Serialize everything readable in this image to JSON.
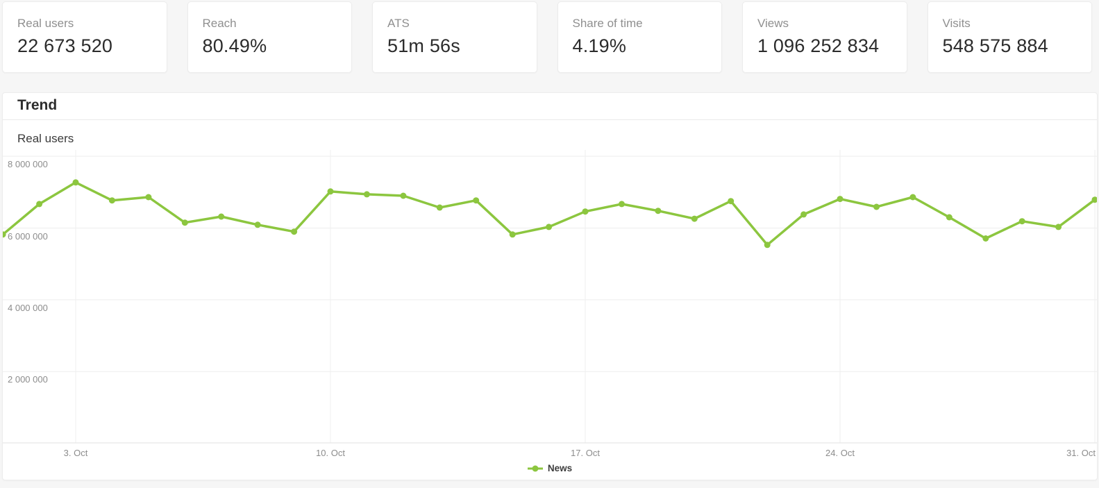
{
  "kpi_cards": [
    {
      "label": "Real users",
      "value": "22 673 520"
    },
    {
      "label": "Reach",
      "value": "80.49%"
    },
    {
      "label": "ATS",
      "value": "51m 56s"
    },
    {
      "label": "Share of time",
      "value": "4.19%"
    },
    {
      "label": "Views",
      "value": "1 096 252 834"
    },
    {
      "label": "Visits",
      "value": "548 575 884"
    }
  ],
  "trend_panel": {
    "title": "Trend",
    "subtitle": "Real users"
  },
  "colors": {
    "series_green": "#8cc63f",
    "grid_line": "#ededed",
    "axis_line": "#e2e2e2",
    "tick_text": "#8c8c8c"
  },
  "chart_data": {
    "type": "line",
    "title": "Trend",
    "ylabel": "Real users",
    "xlabel": "",
    "grid": true,
    "legend_position": "bottom",
    "ylim": [
      0,
      8160000
    ],
    "x_days": [
      1,
      2,
      3,
      4,
      5,
      6,
      7,
      8,
      9,
      10,
      11,
      12,
      13,
      14,
      15,
      16,
      17,
      18,
      19,
      20,
      21,
      22,
      23,
      24,
      25,
      26,
      27,
      28,
      29,
      30,
      31
    ],
    "x_tick_days": [
      3,
      10,
      17,
      24,
      31
    ],
    "x_tick_labels": [
      "3. Oct",
      "10. Oct",
      "17. Oct",
      "24. Oct",
      "31. Oct"
    ],
    "y_ticks": [
      {
        "value": 2000000,
        "label": "2 000 000"
      },
      {
        "value": 4000000,
        "label": "4 000 000"
      },
      {
        "value": 6000000,
        "label": "6 000 000"
      },
      {
        "value": 8000000,
        "label": "8 000 000"
      }
    ],
    "series": [
      {
        "name": "News",
        "color": "#8cc63f",
        "values": [
          5820000,
          6670000,
          7270000,
          6770000,
          6860000,
          6150000,
          6320000,
          6090000,
          5900000,
          7020000,
          6940000,
          6900000,
          6570000,
          6770000,
          5820000,
          6030000,
          6460000,
          6670000,
          6480000,
          6260000,
          6750000,
          5530000,
          6380000,
          6810000,
          6590000,
          6860000,
          6300000,
          5710000,
          6190000,
          6030000,
          6790000
        ]
      }
    ]
  }
}
